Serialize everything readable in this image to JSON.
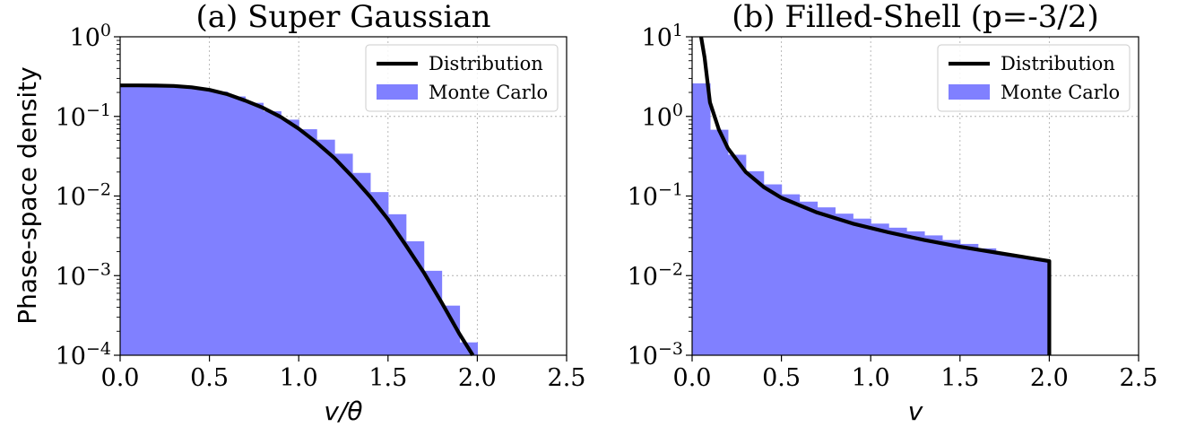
{
  "figure": {
    "ylabel": "Phase-space density"
  },
  "chart_data": [
    {
      "type": "line",
      "title": "(a) Super Gaussian",
      "xlabel": "v/θ",
      "ylabel": "Phase-space density",
      "xlim": [
        0.0,
        2.5
      ],
      "ylim": [
        0.0001,
        1
      ],
      "yscale": "log",
      "grid": true,
      "legend_position": "top-right",
      "xticks": [
        "0.0",
        "0.5",
        "1.0",
        "1.5",
        "2.0",
        "2.5"
      ],
      "yticks": [
        {
          "base": "10",
          "exp": "0"
        },
        {
          "base": "10",
          "exp": "−1"
        },
        {
          "base": "10",
          "exp": "−2"
        },
        {
          "base": "10",
          "exp": "−3"
        },
        {
          "base": "10",
          "exp": "−4"
        }
      ],
      "series": [
        {
          "name": "Distribution",
          "kind": "line",
          "color": "#000000",
          "x": [
            0.0,
            0.1,
            0.2,
            0.3,
            0.4,
            0.5,
            0.6,
            0.7,
            0.8,
            0.9,
            1.0,
            1.1,
            1.2,
            1.3,
            1.4,
            1.5,
            1.6,
            1.7,
            1.8,
            1.9,
            1.975
          ],
          "y": [
            0.245,
            0.245,
            0.244,
            0.241,
            0.232,
            0.215,
            0.19,
            0.158,
            0.128,
            0.098,
            0.07,
            0.047,
            0.03,
            0.0175,
            0.0098,
            0.0051,
            0.0024,
            0.0011,
            0.00046,
            0.000185,
            0.0001
          ]
        },
        {
          "name": "Monte Carlo",
          "kind": "histogram",
          "color": "#8080ff",
          "bin_edges": [
            0.0,
            0.1,
            0.2,
            0.3,
            0.4,
            0.5,
            0.6,
            0.7,
            0.8,
            0.9,
            1.0,
            1.1,
            1.2,
            1.3,
            1.4,
            1.5,
            1.6,
            1.7,
            1.8,
            1.9,
            2.0
          ],
          "values": [
            0.245,
            0.244,
            0.242,
            0.236,
            0.224,
            0.205,
            0.178,
            0.148,
            0.116,
            0.091,
            0.069,
            0.051,
            0.034,
            0.0195,
            0.0112,
            0.0059,
            0.0027,
            0.00115,
            0.00042,
            0.000145
          ]
        }
      ]
    },
    {
      "type": "line",
      "title": "(b) Filled-Shell (p=-3/2)",
      "xlabel": "v",
      "ylabel": "",
      "xlim": [
        0.0,
        2.5
      ],
      "ylim": [
        0.001,
        10
      ],
      "yscale": "log",
      "grid": true,
      "legend_position": "top-right",
      "xticks": [
        "0.0",
        "0.5",
        "1.0",
        "1.5",
        "2.0",
        "2.5"
      ],
      "yticks": [
        {
          "base": "10",
          "exp": "1"
        },
        {
          "base": "10",
          "exp": "0"
        },
        {
          "base": "10",
          "exp": "−1"
        },
        {
          "base": "10",
          "exp": "−2"
        },
        {
          "base": "10",
          "exp": "−3"
        }
      ],
      "series": [
        {
          "name": "Distribution",
          "kind": "line",
          "color": "#000000",
          "x": [
            0.05,
            0.07,
            0.1,
            0.15,
            0.2,
            0.3,
            0.4,
            0.5,
            0.7,
            0.9,
            1.1,
            1.3,
            1.5,
            1.7,
            1.9,
            2.0,
            2.0
          ],
          "y": [
            10,
            5.5,
            1.5,
            0.68,
            0.4,
            0.2,
            0.13,
            0.095,
            0.062,
            0.045,
            0.035,
            0.028,
            0.023,
            0.0195,
            0.0165,
            0.0152,
            0.001
          ]
        },
        {
          "name": "Monte Carlo",
          "kind": "histogram",
          "color": "#8080ff",
          "bin_edges": [
            0.0,
            0.1,
            0.2,
            0.3,
            0.4,
            0.5,
            0.6,
            0.7,
            0.8,
            0.9,
            1.0,
            1.1,
            1.2,
            1.3,
            1.4,
            1.5,
            1.6,
            1.7,
            1.8,
            1.9,
            2.0
          ],
          "values": [
            2.6,
            0.68,
            0.33,
            0.205,
            0.14,
            0.105,
            0.085,
            0.072,
            0.06,
            0.052,
            0.045,
            0.04,
            0.036,
            0.032,
            0.028,
            0.025,
            0.022,
            0.019,
            0.017,
            0.0155
          ]
        }
      ]
    }
  ]
}
